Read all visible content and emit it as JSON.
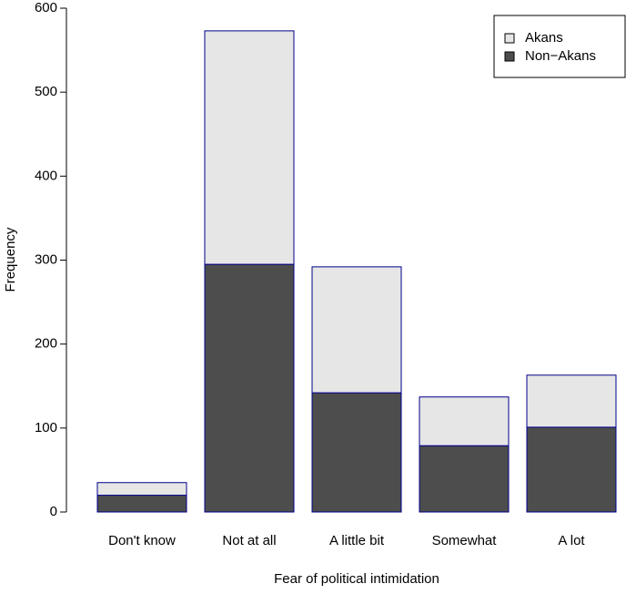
{
  "chart_data": {
    "type": "stacked_bar",
    "xlabel": "Fear of political intimidation",
    "ylabel": "Frequency",
    "categories": [
      "Don't know",
      "Not at all",
      "A little bit",
      "Somewhat",
      "A lot"
    ],
    "series": [
      {
        "name": "Akans",
        "color": "#e6e6e6",
        "values": [
          15,
          278,
          150,
          58,
          62
        ]
      },
      {
        "name": "Non−Akans",
        "color": "#4d4d4d",
        "values": [
          20,
          295,
          142,
          79,
          101
        ]
      }
    ],
    "stack_order": [
      "Non−Akans",
      "Akans"
    ],
    "edge_color": "#00008b",
    "ylim": [
      0,
      600
    ],
    "yticks": [
      0,
      100,
      200,
      300,
      400,
      500,
      600
    ],
    "legend": "top-right"
  }
}
